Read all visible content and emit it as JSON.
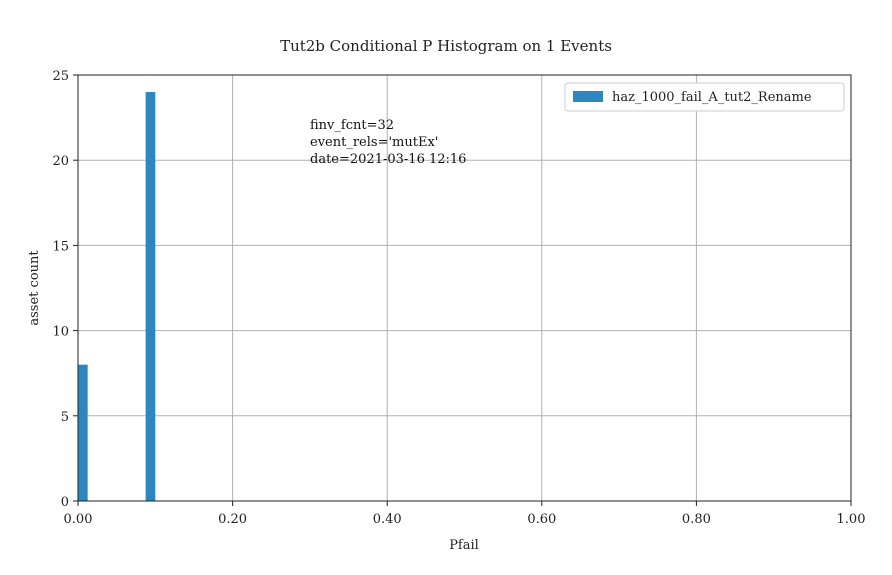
{
  "chart_data": {
    "type": "bar",
    "title": "Tut2b Conditional P Histogram on 1 Events",
    "xlabel": "Pfail",
    "ylabel": "asset count",
    "xlim": [
      0.0,
      1.0
    ],
    "ylim": [
      0,
      25
    ],
    "x_ticks": [
      0.0,
      0.2,
      0.4,
      0.6,
      0.8,
      1.0
    ],
    "x_tick_labels": [
      "0.00",
      "0.20",
      "0.40",
      "0.60",
      "0.80",
      "1.00"
    ],
    "y_ticks": [
      0,
      5,
      10,
      15,
      20,
      25
    ],
    "y_tick_labels": [
      "0",
      "5",
      "10",
      "15",
      "20",
      "25"
    ],
    "grid": true,
    "legend_position": "top-right",
    "bar_color": "#2e86c1",
    "series": [
      {
        "name": "haz_1000_fail_A_tut2_Rename",
        "bins": [
          {
            "x0": 0.0,
            "x1": 0.0125,
            "value": 8
          },
          {
            "x0": 0.0875,
            "x1": 0.1,
            "value": 24
          }
        ]
      }
    ],
    "annotation_lines": [
      "finv_fcnt=32",
      "event_rels='mutEx'",
      "date=2021-03-16 12:16"
    ]
  }
}
